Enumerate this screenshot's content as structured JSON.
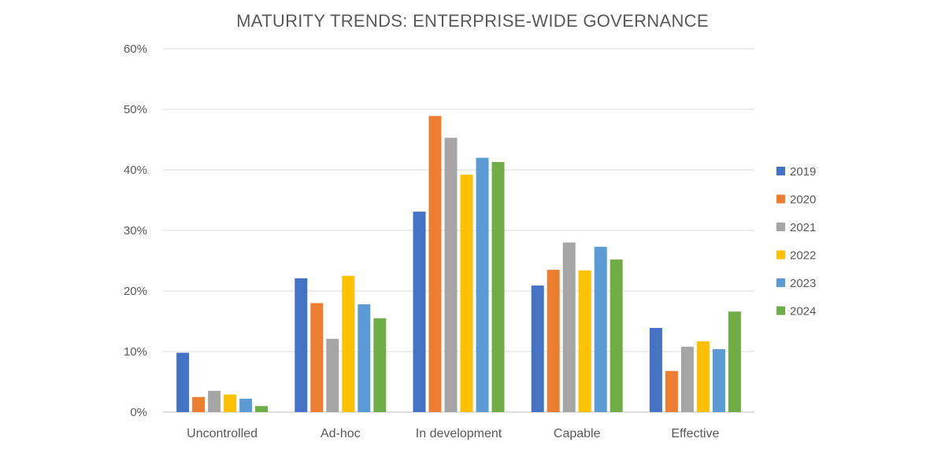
{
  "chart_data": {
    "type": "bar",
    "title": "MATURITY TRENDS: ENTERPRISE-WIDE GOVERNANCE",
    "xlabel": "",
    "ylabel": "",
    "categories": [
      "Uncontrolled",
      "Ad-hoc",
      "In development",
      "Capable",
      "Effective"
    ],
    "ylim": [
      0,
      60
    ],
    "yticks": [
      0,
      10,
      20,
      30,
      40,
      50,
      60
    ],
    "ytick_labels": [
      "0%",
      "10%",
      "20%",
      "30%",
      "40%",
      "50%",
      "60%"
    ],
    "grid": "horizontal",
    "legend_position": "right",
    "series": [
      {
        "name": "2019",
        "color": "#4472C4",
        "values": [
          9.8,
          22.1,
          33.1,
          20.9,
          13.9
        ]
      },
      {
        "name": "2020",
        "color": "#ED7D31",
        "values": [
          2.5,
          18.0,
          48.9,
          23.5,
          6.8
        ]
      },
      {
        "name": "2021",
        "color": "#A5A5A5",
        "values": [
          3.5,
          12.1,
          45.3,
          28.0,
          10.8
        ]
      },
      {
        "name": "2022",
        "color": "#FFC000",
        "values": [
          2.9,
          22.5,
          39.2,
          23.4,
          11.7
        ]
      },
      {
        "name": "2023",
        "color": "#5B9BD5",
        "values": [
          2.2,
          17.8,
          42.0,
          27.3,
          10.4
        ]
      },
      {
        "name": "2024",
        "color": "#70AD47",
        "values": [
          1.0,
          15.5,
          41.3,
          25.2,
          16.6
        ]
      }
    ]
  }
}
